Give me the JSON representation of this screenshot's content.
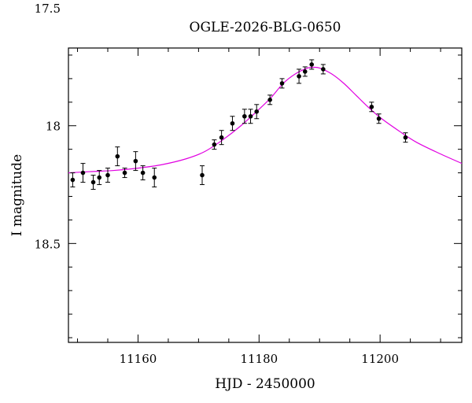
{
  "chart_data": {
    "type": "scatter",
    "title": "OGLE-2026-BLG-0650",
    "xlabel": "HJD - 2450000",
    "ylabel": "I magnitude",
    "xlim": [
      11148.5,
      11213.5
    ],
    "ylim": [
      18.92,
      17.67
    ],
    "y_inverted": true,
    "x_ticks": [
      11160,
      11180,
      11200
    ],
    "x_tick_labels": [
      "11160",
      "11180",
      "11200"
    ],
    "y_ticks": [
      17.5,
      18,
      18.5
    ],
    "y_tick_labels": [
      "17.5",
      "18",
      "18.5"
    ],
    "grid": false,
    "model_color": "#e100e1",
    "point_color": "#000000",
    "points": [
      {
        "x": 11149.2,
        "y": 18.23,
        "err": 0.03
      },
      {
        "x": 11150.9,
        "y": 18.2,
        "err": 0.04
      },
      {
        "x": 11152.6,
        "y": 18.24,
        "err": 0.03
      },
      {
        "x": 11153.6,
        "y": 18.22,
        "err": 0.03
      },
      {
        "x": 11155.0,
        "y": 18.21,
        "err": 0.03
      },
      {
        "x": 11156.6,
        "y": 18.13,
        "err": 0.04
      },
      {
        "x": 11157.8,
        "y": 18.2,
        "err": 0.02
      },
      {
        "x": 11159.6,
        "y": 18.15,
        "err": 0.04
      },
      {
        "x": 11160.8,
        "y": 18.2,
        "err": 0.03
      },
      {
        "x": 11162.7,
        "y": 18.22,
        "err": 0.04
      },
      {
        "x": 11170.6,
        "y": 18.21,
        "err": 0.04
      },
      {
        "x": 11172.6,
        "y": 18.08,
        "err": 0.02
      },
      {
        "x": 11173.8,
        "y": 18.05,
        "err": 0.03
      },
      {
        "x": 11175.6,
        "y": 17.99,
        "err": 0.03
      },
      {
        "x": 11177.6,
        "y": 17.96,
        "err": 0.03
      },
      {
        "x": 11178.6,
        "y": 17.96,
        "err": 0.03
      },
      {
        "x": 11179.6,
        "y": 17.94,
        "err": 0.03
      },
      {
        "x": 11181.8,
        "y": 17.89,
        "err": 0.02
      },
      {
        "x": 11183.8,
        "y": 17.82,
        "err": 0.02
      },
      {
        "x": 11186.6,
        "y": 17.79,
        "err": 0.03
      },
      {
        "x": 11187.6,
        "y": 17.77,
        "err": 0.02
      },
      {
        "x": 11188.7,
        "y": 17.74,
        "err": 0.02
      },
      {
        "x": 11190.6,
        "y": 17.76,
        "err": 0.02
      },
      {
        "x": 11198.6,
        "y": 17.92,
        "err": 0.02
      },
      {
        "x": 11199.8,
        "y": 17.97,
        "err": 0.02
      },
      {
        "x": 11204.2,
        "y": 18.05,
        "err": 0.02
      }
    ],
    "model": {
      "x": [
        11148.5,
        11152,
        11156,
        11160,
        11164,
        11168,
        11171,
        11174,
        11177,
        11180,
        11182,
        11184,
        11186,
        11188,
        11189,
        11190,
        11192,
        11194,
        11196,
        11198,
        11200,
        11203,
        11206,
        11210,
        11213.5
      ],
      "y": [
        18.2,
        18.195,
        18.19,
        18.18,
        18.165,
        18.14,
        18.11,
        18.06,
        18.0,
        17.93,
        17.88,
        17.82,
        17.78,
        17.755,
        17.752,
        17.755,
        17.78,
        17.82,
        17.87,
        17.92,
        17.965,
        18.02,
        18.07,
        18.12,
        18.16
      ]
    }
  }
}
